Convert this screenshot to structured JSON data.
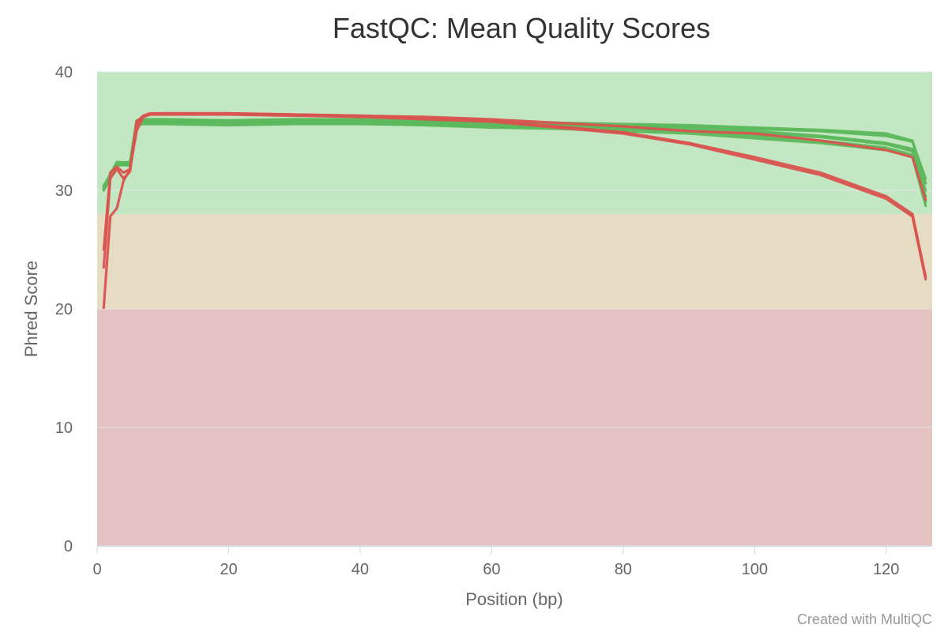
{
  "chart_data": {
    "type": "line",
    "title": "FastQC: Mean Quality Scores",
    "xlabel": "Position (bp)",
    "ylabel": "Phred Score",
    "xlim": [
      0,
      127
    ],
    "ylim": [
      0,
      40
    ],
    "xticks": [
      0,
      20,
      40,
      60,
      80,
      100,
      120
    ],
    "yticks": [
      0,
      10,
      20,
      30,
      40
    ],
    "grid": true,
    "credits": "Created with MultiQC",
    "bands": [
      {
        "from": 28,
        "to": 40,
        "color": "#c3e6c3"
      },
      {
        "from": 20,
        "to": 28,
        "color": "#e6dcc3"
      },
      {
        "from": 0,
        "to": 20,
        "color": "#e6c3c3"
      }
    ],
    "series": [
      {
        "color": "#5cb85c",
        "x": [
          1,
          3,
          5,
          6,
          7,
          10,
          20,
          30,
          40,
          50,
          60,
          70,
          80,
          90,
          100,
          110,
          120,
          124,
          126
        ],
        "y": [
          30.2,
          32.3,
          32.3,
          35.8,
          35.9,
          35.9,
          35.8,
          35.9,
          35.8,
          35.6,
          35.5,
          35.4,
          35.2,
          35.0,
          34.6,
          34.2,
          33.6,
          33.0,
          29.0
        ]
      },
      {
        "color": "#5cb85c",
        "x": [
          1,
          3,
          5,
          6,
          7,
          10,
          20,
          30,
          40,
          50,
          60,
          70,
          80,
          90,
          100,
          110,
          120,
          124,
          126
        ],
        "y": [
          30.0,
          32.2,
          32.2,
          35.6,
          35.7,
          35.7,
          35.6,
          35.7,
          35.7,
          35.5,
          35.3,
          35.2,
          35.0,
          34.8,
          34.4,
          34.0,
          33.4,
          32.8,
          28.7
        ]
      },
      {
        "color": "#5cb85c",
        "x": [
          1,
          3,
          5,
          6,
          7,
          10,
          20,
          30,
          40,
          50,
          60,
          70,
          80,
          90,
          100,
          110,
          120,
          124,
          126
        ],
        "y": [
          30.3,
          32.4,
          32.3,
          35.9,
          36.0,
          36.0,
          35.9,
          36.0,
          35.9,
          35.8,
          35.6,
          35.5,
          35.4,
          35.3,
          35.0,
          34.6,
          34.0,
          33.5,
          30.0
        ]
      },
      {
        "color": "#5cb85c",
        "x": [
          1,
          3,
          5,
          6,
          7,
          10,
          20,
          30,
          40,
          50,
          60,
          70,
          80,
          90,
          100,
          110,
          120,
          124,
          126
        ],
        "y": [
          30.1,
          32.1,
          32.2,
          35.7,
          35.8,
          35.8,
          35.7,
          35.8,
          35.8,
          35.7,
          35.6,
          35.5,
          35.4,
          35.4,
          35.2,
          35.0,
          34.6,
          34.1,
          31.0
        ]
      },
      {
        "color": "#5cb85c",
        "x": [
          1,
          3,
          5,
          6,
          7,
          10,
          20,
          30,
          40,
          50,
          60,
          70,
          80,
          90,
          100,
          110,
          120,
          124,
          126
        ],
        "y": [
          30.4,
          32.3,
          32.4,
          35.8,
          35.9,
          36.0,
          35.9,
          36.0,
          36.0,
          35.9,
          35.8,
          35.7,
          35.6,
          35.5,
          35.3,
          35.1,
          34.8,
          34.2,
          30.6
        ]
      },
      {
        "color": "#5cb85c",
        "x": [
          1,
          3,
          5,
          6,
          7,
          10,
          20,
          30,
          40,
          50,
          60,
          70,
          80,
          90,
          100,
          110,
          120,
          124,
          126
        ],
        "y": [
          30.0,
          32.2,
          32.1,
          35.5,
          35.6,
          35.6,
          35.5,
          35.6,
          35.6,
          35.5,
          35.4,
          35.3,
          35.2,
          35.1,
          34.8,
          34.5,
          33.9,
          33.3,
          29.5
        ]
      },
      {
        "color": "#d9534f",
        "x": [
          1,
          2,
          3,
          4,
          5,
          6,
          7,
          8,
          10,
          20,
          30,
          40,
          50,
          60,
          70,
          80,
          90,
          100,
          110,
          120,
          124,
          126
        ],
        "y": [
          20.1,
          27.8,
          28.5,
          30.8,
          31.8,
          35.0,
          36.2,
          36.4,
          36.5,
          36.5,
          36.4,
          36.3,
          36.2,
          36.0,
          35.7,
          35.4,
          35.0,
          34.8,
          34.2,
          33.4,
          32.8,
          29.2
        ]
      },
      {
        "color": "#d9534f",
        "x": [
          1,
          2,
          3,
          4,
          5,
          6,
          7,
          8,
          10,
          20,
          30,
          40,
          50,
          60,
          70,
          80,
          90,
          100,
          110,
          120,
          124,
          126
        ],
        "y": [
          23.5,
          31.0,
          31.8,
          31.0,
          31.6,
          35.8,
          36.3,
          36.5,
          36.5,
          36.5,
          36.4,
          36.3,
          36.1,
          35.9,
          35.4,
          34.9,
          34.0,
          32.8,
          31.5,
          29.5,
          28.0,
          22.7
        ]
      },
      {
        "color": "#d9534f",
        "x": [
          1,
          2,
          3,
          4,
          5,
          6,
          7,
          8,
          10,
          20,
          30,
          40,
          50,
          60,
          70,
          80,
          90,
          100,
          110,
          120,
          124,
          126
        ],
        "y": [
          25.0,
          31.5,
          32.0,
          31.5,
          31.8,
          35.6,
          36.2,
          36.4,
          36.4,
          36.4,
          36.3,
          36.2,
          36.0,
          35.8,
          35.3,
          34.8,
          33.9,
          32.6,
          31.3,
          29.3,
          27.8,
          22.5
        ]
      }
    ]
  }
}
